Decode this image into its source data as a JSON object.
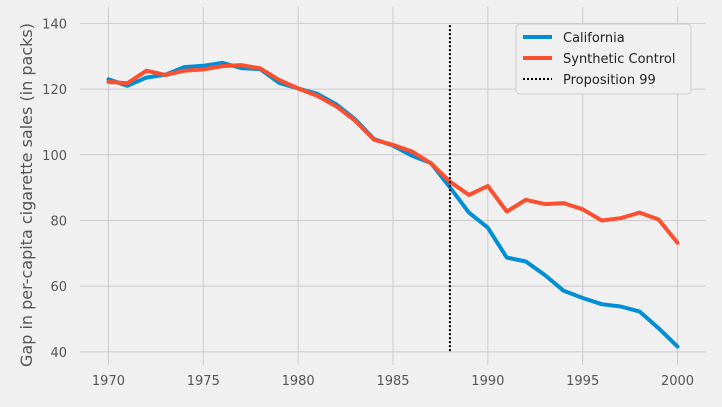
{
  "chart_data": {
    "type": "line",
    "title": "",
    "xlabel": "",
    "ylabel": "Gap in per-capita cigarette sales (in packs)",
    "xlim": [
      1968.5,
      2001.5
    ],
    "ylim": [
      36,
      145
    ],
    "xticks": [
      1970,
      1975,
      1980,
      1985,
      1990,
      1995,
      2000
    ],
    "yticks": [
      40,
      60,
      80,
      100,
      120,
      140
    ],
    "grid": true,
    "legend_position": "top-right",
    "x": [
      1970,
      1971,
      1972,
      1973,
      1974,
      1975,
      1976,
      1977,
      1978,
      1979,
      1980,
      1981,
      1982,
      1983,
      1984,
      1985,
      1986,
      1987,
      1988,
      1989,
      1990,
      1991,
      1992,
      1993,
      1994,
      1995,
      1996,
      1997,
      1998,
      1999,
      2000
    ],
    "series": [
      {
        "name": "California",
        "color": "#008fd5",
        "values": [
          123.0,
          121.0,
          123.5,
          124.4,
          126.7,
          127.1,
          128.0,
          126.4,
          126.1,
          121.9,
          120.2,
          118.6,
          115.4,
          110.8,
          104.8,
          102.8,
          99.7,
          97.5,
          90.1,
          82.4,
          77.8,
          68.7,
          67.5,
          63.4,
          58.6,
          56.4,
          54.5,
          53.8,
          52.3,
          47.2,
          41.6
        ]
      },
      {
        "name": "Synthetic Control",
        "color": "#fc4f30",
        "values": [
          122.2,
          121.8,
          125.6,
          124.3,
          125.6,
          126.0,
          127.0,
          127.3,
          126.3,
          122.8,
          120.2,
          118.0,
          114.8,
          110.4,
          104.6,
          103.0,
          101.0,
          97.4,
          91.8,
          87.8,
          90.5,
          82.7,
          86.3,
          85.0,
          85.3,
          83.4,
          80.0,
          80.7,
          82.4,
          80.3,
          73.2
        ]
      }
    ],
    "vline": {
      "name": "Proposition 99",
      "x": 1988,
      "color": "#000000",
      "style": "dotted"
    }
  }
}
